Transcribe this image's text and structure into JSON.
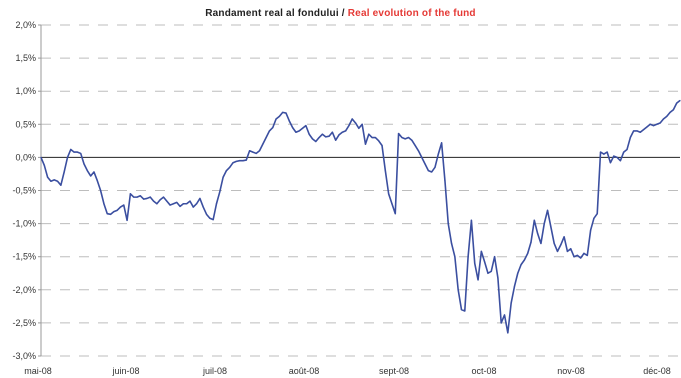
{
  "title": {
    "main": "Randament real al fondului",
    "separator": "/",
    "english": "Real evolution of the fund"
  },
  "colors": {
    "title_en": "#e53935",
    "series": "#3b4fa0",
    "grid": "#bdbdbd",
    "zero_line": "#222222"
  },
  "chart_data": {
    "type": "line",
    "title": "Randament real al fondului / Real evolution of the fund",
    "xlabel": "",
    "ylabel": "",
    "y_unit": "%",
    "ylim": [
      -3.0,
      2.0
    ],
    "y_ticks": [
      "2,0%",
      "1,5%",
      "1,0%",
      "0,5%",
      "0,0%",
      "-0,5%",
      "-1,0%",
      "-1,5%",
      "-2,0%",
      "-2,5%",
      "-3,0%"
    ],
    "x_ticks": [
      "mai-08",
      "juin-08",
      "juil-08",
      "août-08",
      "sept-08",
      "oct-08",
      "nov-08",
      "déc-08"
    ],
    "grid": "horizontal dashed",
    "legend": "none",
    "series": [
      {
        "values": [
          0.0,
          -0.12,
          -0.3,
          -0.36,
          -0.34,
          -0.36,
          -0.42,
          -0.22,
          0.0,
          0.12,
          0.08,
          0.08,
          0.06,
          -0.1,
          -0.2,
          -0.28,
          -0.22,
          -0.35,
          -0.5,
          -0.7,
          -0.85,
          -0.86,
          -0.82,
          -0.8,
          -0.75,
          -0.72,
          -0.95,
          -0.55,
          -0.6,
          -0.6,
          -0.58,
          -0.63,
          -0.62,
          -0.6,
          -0.66,
          -0.7,
          -0.64,
          -0.6,
          -0.66,
          -0.72,
          -0.7,
          -0.68,
          -0.74,
          -0.7,
          -0.7,
          -0.66,
          -0.75,
          -0.7,
          -0.62,
          -0.75,
          -0.86,
          -0.92,
          -0.94,
          -0.7,
          -0.52,
          -0.3,
          -0.2,
          -0.15,
          -0.08,
          -0.06,
          -0.05,
          -0.05,
          -0.04,
          0.1,
          0.08,
          0.06,
          0.1,
          0.2,
          0.3,
          0.4,
          0.45,
          0.58,
          0.62,
          0.68,
          0.67,
          0.55,
          0.45,
          0.38,
          0.4,
          0.44,
          0.48,
          0.35,
          0.28,
          0.24,
          0.3,
          0.35,
          0.31,
          0.32,
          0.38,
          0.26,
          0.34,
          0.38,
          0.4,
          0.48,
          0.58,
          0.52,
          0.44,
          0.5,
          0.2,
          0.35,
          0.3,
          0.3,
          0.25,
          0.18,
          -0.2,
          -0.55,
          -0.7,
          -0.85,
          0.36,
          0.3,
          0.28,
          0.3,
          0.26,
          0.18,
          0.1,
          0.0,
          -0.1,
          -0.2,
          -0.22,
          -0.15,
          0.05,
          0.22,
          -0.35,
          -1.0,
          -1.3,
          -1.5,
          -2.0,
          -2.3,
          -2.32,
          -1.5,
          -0.95,
          -1.6,
          -1.85,
          -1.42,
          -1.58,
          -1.75,
          -1.72,
          -1.5,
          -1.82,
          -2.5,
          -2.38,
          -2.65,
          -2.2,
          -1.95,
          -1.75,
          -1.62,
          -1.55,
          -1.45,
          -1.28,
          -0.95,
          -1.15,
          -1.3,
          -1.0,
          -0.8,
          -1.05,
          -1.3,
          -1.42,
          -1.32,
          -1.2,
          -1.42,
          -1.38,
          -1.5,
          -1.48,
          -1.52,
          -1.45,
          -1.48,
          -1.1,
          -0.92,
          -0.85,
          0.08,
          0.05,
          0.08,
          -0.08,
          0.02,
          0.0,
          -0.05,
          0.08,
          0.12,
          0.3,
          0.4,
          0.4,
          0.38,
          0.42,
          0.46,
          0.5,
          0.48,
          0.5,
          0.52,
          0.58,
          0.62,
          0.68,
          0.72,
          0.82,
          0.86
        ]
      }
    ]
  }
}
